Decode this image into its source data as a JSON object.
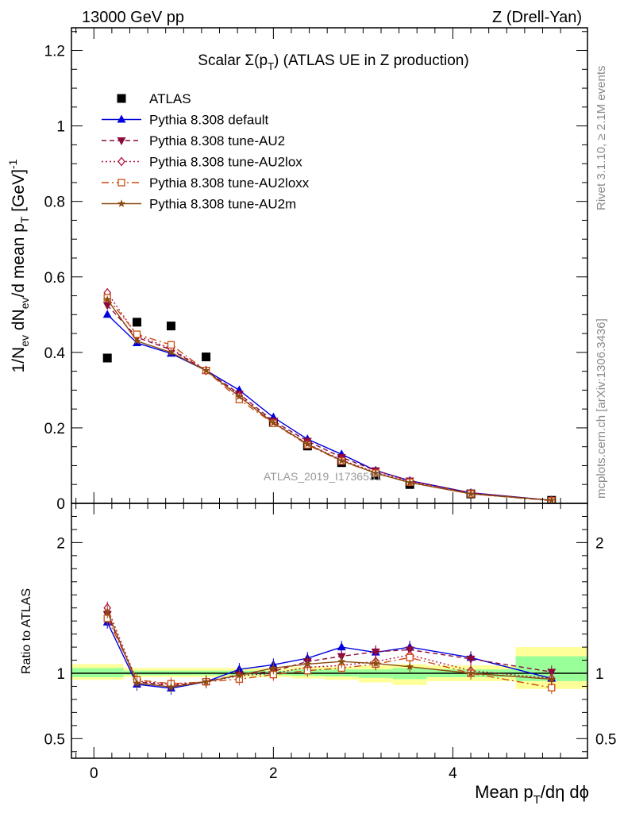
{
  "header": {
    "left": "13000 GeV pp",
    "right": "Z (Drell-Yan)"
  },
  "side": {
    "rivet": "Rivet 3.1.10, ≥ 2.1M events",
    "mcplots": "mcplots.cern.ch [arXiv:1306.3436]"
  },
  "watermark": "ATLAS_2019_I1736531",
  "chart_data": [
    {
      "type": "line",
      "panel": "main",
      "title": "Scalar Σ(p_T) (ATLAS UE in Z production)",
      "xlabel": "Mean p_T/dη dϕ",
      "ylabel": "1/N_ev dN_ev/d mean p_T [GeV]^-1",
      "xlim": [
        -0.25,
        5.5
      ],
      "ylim": [
        0,
        1.26
      ],
      "xticks": [
        0,
        2,
        4
      ],
      "yticks": [
        0,
        0.2,
        0.4,
        0.6,
        0.8,
        1,
        1.2
      ],
      "ytick_labels": [
        "0",
        "0.2",
        "0.4",
        "0.6",
        "0.8",
        "1",
        "1.2"
      ],
      "legend_position": "top-left",
      "x": [
        0.15,
        0.48,
        0.86,
        1.25,
        1.62,
        2.0,
        2.38,
        2.76,
        3.14,
        3.52,
        4.2,
        5.1
      ],
      "series": [
        {
          "name": "ATLAS",
          "color": "#000000",
          "marker": "square",
          "values": [
            0.385,
            0.48,
            0.47,
            0.388,
            null,
            0.215,
            0.152,
            0.108,
            0.075,
            0.05,
            0.025,
            0.008
          ]
        },
        {
          "name": "Pythia 8.308 default",
          "color": "#0000dd",
          "marker": "triangle-up",
          "dash": "",
          "values": [
            0.5,
            0.425,
            0.397,
            0.352,
            0.3,
            0.228,
            0.17,
            0.13,
            0.087,
            0.06,
            0.028,
            0.008
          ]
        },
        {
          "name": "Pythia 8.308 tune-AU2",
          "color": "#8b0a3a",
          "marker": "triangle-down",
          "dash": "6,4",
          "values": [
            0.525,
            0.44,
            0.407,
            0.352,
            0.29,
            0.218,
            0.165,
            0.122,
            0.087,
            0.06,
            0.028,
            0.008
          ]
        },
        {
          "name": "Pythia 8.308 tune-AU2lox",
          "color": "#b2103a",
          "marker": "diamond-open",
          "dash": "2,3",
          "values": [
            0.558,
            0.445,
            0.41,
            0.352,
            0.285,
            0.215,
            0.158,
            0.115,
            0.082,
            0.057,
            0.026,
            0.008
          ]
        },
        {
          "name": "Pythia 8.308 tune-AU2loxx",
          "color": "#cc4a12",
          "marker": "square-open",
          "dash": "9,4,2,4",
          "values": [
            0.545,
            0.448,
            0.42,
            0.352,
            0.275,
            0.212,
            0.155,
            0.112,
            0.08,
            0.056,
            0.025,
            0.007
          ]
        },
        {
          "name": "Pythia 8.308 tune-AU2m",
          "color": "#8a4a10",
          "marker": "star",
          "dash": "",
          "values": [
            0.54,
            0.43,
            0.4,
            0.352,
            0.283,
            0.213,
            0.157,
            0.113,
            0.08,
            0.055,
            0.025,
            0.008
          ]
        }
      ]
    },
    {
      "type": "line",
      "panel": "ratio",
      "ylabel": "Ratio to ATLAS",
      "xlabel": "Mean p_T/dη dϕ",
      "xlim": [
        -0.25,
        5.5
      ],
      "ylim": [
        0.35,
        2.3
      ],
      "yticks": [
        0.5,
        1,
        2
      ],
      "ytick_labels": [
        "0.5",
        "1",
        "2"
      ],
      "reference_line": 1,
      "bands": [
        {
          "x0": -0.25,
          "x1": 0.33,
          "yellow": [
            0.95,
            1.07
          ],
          "green": [
            0.97,
            1.04
          ]
        },
        {
          "x0": 0.33,
          "x1": 2.2,
          "yellow": [
            0.97,
            1.04
          ],
          "green": [
            0.985,
            1.02
          ]
        },
        {
          "x0": 2.2,
          "x1": 2.57,
          "yellow": [
            0.96,
            1.05
          ],
          "green": [
            0.98,
            1.03
          ]
        },
        {
          "x0": 2.57,
          "x1": 2.95,
          "yellow": [
            0.95,
            1.05
          ],
          "green": [
            0.975,
            1.03
          ]
        },
        {
          "x0": 2.95,
          "x1": 3.33,
          "yellow": [
            0.93,
            1.06
          ],
          "green": [
            0.965,
            1.03
          ]
        },
        {
          "x0": 3.33,
          "x1": 3.71,
          "yellow": [
            0.91,
            1.07
          ],
          "green": [
            0.955,
            1.04
          ]
        },
        {
          "x0": 3.71,
          "x1": 4.7,
          "yellow": [
            0.94,
            1.06
          ],
          "green": [
            0.97,
            1.03
          ]
        },
        {
          "x0": 4.7,
          "x1": 5.5,
          "yellow": [
            0.88,
            1.2
          ],
          "green": [
            0.94,
            1.13
          ]
        }
      ],
      "x": [
        0.15,
        0.48,
        0.86,
        1.25,
        1.62,
        2.0,
        2.38,
        2.76,
        3.14,
        3.52,
        4.2,
        5.1
      ],
      "series": [
        {
          "name": "Pythia 8.308 default",
          "values": [
            1.39,
            0.915,
            0.885,
            0.935,
            1.03,
            1.065,
            1.115,
            1.2,
            1.16,
            1.2,
            1.12,
            0.96
          ]
        },
        {
          "name": "Pythia 8.308 tune-AU2",
          "values": [
            1.45,
            0.935,
            0.905,
            0.935,
            0.99,
            1.015,
            1.09,
            1.13,
            1.165,
            1.18,
            1.11,
            1.01
          ]
        },
        {
          "name": "Pythia 8.308 tune-AU2lox",
          "values": [
            1.5,
            0.94,
            0.915,
            0.935,
            0.98,
            1.0,
            1.045,
            1.06,
            1.09,
            1.14,
            1.02,
            0.96
          ]
        },
        {
          "name": "Pythia 8.308 tune-AU2loxx",
          "values": [
            1.42,
            0.95,
            0.92,
            0.935,
            0.955,
            0.99,
            1.02,
            1.04,
            1.07,
            1.12,
            1.0,
            0.89
          ]
        },
        {
          "name": "Pythia 8.308 tune-AU2m",
          "values": [
            1.47,
            0.925,
            0.895,
            0.935,
            0.985,
            1.04,
            1.07,
            1.09,
            1.075,
            1.05,
            1.0,
            0.955
          ]
        }
      ]
    }
  ]
}
